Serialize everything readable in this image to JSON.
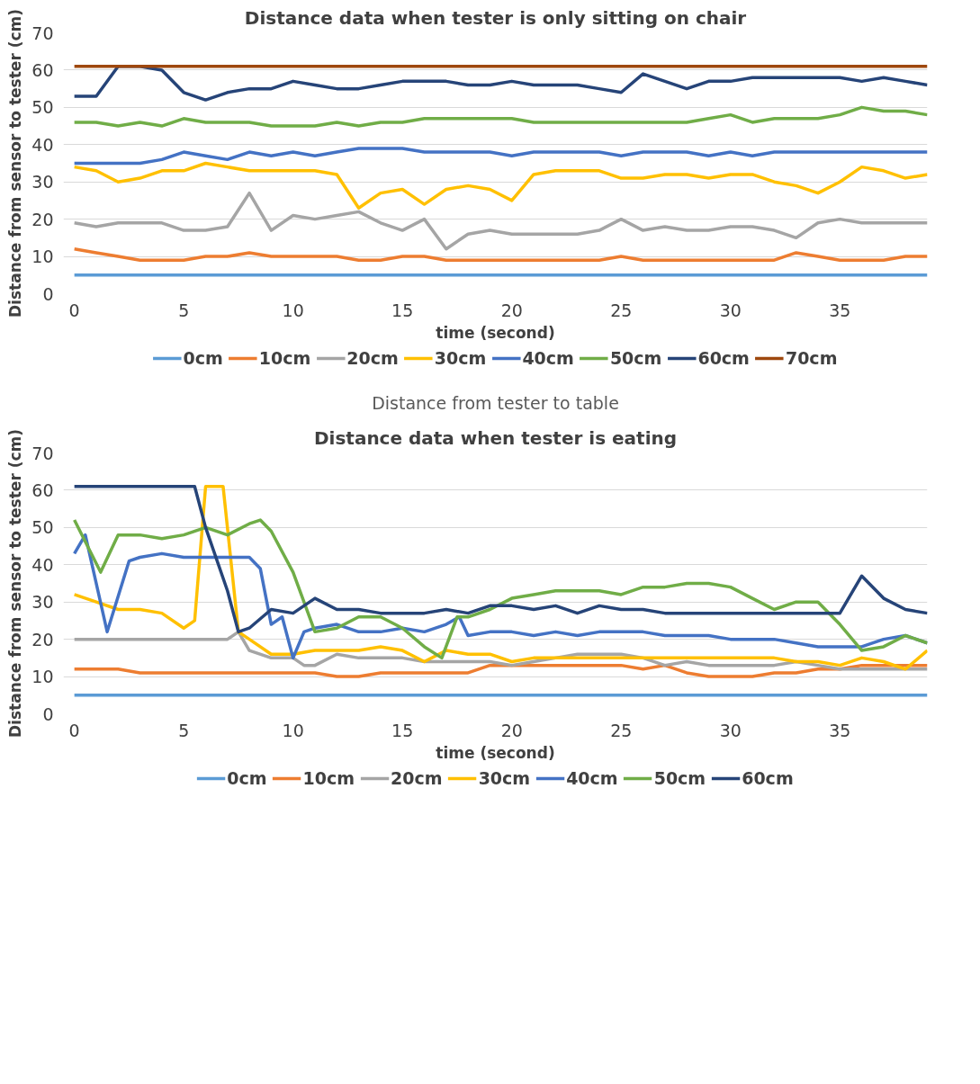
{
  "chart_data": [
    {
      "type": "line",
      "title": "Distance data when tester is only sitting on chair",
      "xlabel": "time (second)",
      "ylabel": "Distance from sensor to tester (cm)",
      "legend_title": "Distance from tester to table",
      "grid": "y",
      "legend": "bottom",
      "xlim": [
        -0.5,
        39
      ],
      "ylim": [
        0,
        70
      ],
      "xticks": [
        0,
        5,
        10,
        15,
        20,
        25,
        30,
        35
      ],
      "yticks": [
        0,
        10,
        20,
        30,
        40,
        50,
        60,
        70
      ],
      "x": [
        0,
        1,
        2,
        3,
        4,
        5,
        6,
        7,
        8,
        9,
        10,
        11,
        12,
        13,
        14,
        15,
        16,
        17,
        18,
        19,
        20,
        21,
        22,
        23,
        24,
        25,
        26,
        27,
        28,
        29,
        30,
        31,
        32,
        33,
        34,
        35,
        36,
        37,
        38,
        39
      ],
      "series": [
        {
          "name": "0cm",
          "color": "#5b9bd5",
          "values": [
            5,
            5,
            5,
            5,
            5,
            5,
            5,
            5,
            5,
            5,
            5,
            5,
            5,
            5,
            5,
            5,
            5,
            5,
            5,
            5,
            5,
            5,
            5,
            5,
            5,
            5,
            5,
            5,
            5,
            5,
            5,
            5,
            5,
            5,
            5,
            5,
            5,
            5,
            5,
            5
          ]
        },
        {
          "name": "10cm",
          "color": "#ed7d31",
          "values": [
            12,
            11,
            10,
            9,
            9,
            9,
            10,
            10,
            11,
            10,
            10,
            10,
            10,
            9,
            9,
            10,
            10,
            9,
            9,
            9,
            9,
            9,
            9,
            9,
            9,
            10,
            9,
            9,
            9,
            9,
            9,
            9,
            9,
            11,
            10,
            9,
            9,
            9,
            10,
            10
          ]
        },
        {
          "name": "20cm",
          "color": "#a5a5a5",
          "values": [
            19,
            18,
            19,
            19,
            19,
            17,
            17,
            18,
            27,
            17,
            21,
            20,
            21,
            22,
            19,
            17,
            20,
            12,
            16,
            17,
            16,
            16,
            16,
            16,
            17,
            20,
            17,
            18,
            17,
            17,
            18,
            18,
            17,
            15,
            19,
            20,
            19,
            19,
            19,
            19
          ]
        },
        {
          "name": "30cm",
          "color": "#ffc000",
          "values": [
            34,
            33,
            30,
            31,
            33,
            33,
            35,
            34,
            33,
            33,
            33,
            33,
            32,
            23,
            27,
            28,
            24,
            28,
            29,
            28,
            25,
            32,
            33,
            33,
            33,
            31,
            31,
            32,
            32,
            31,
            32,
            32,
            30,
            29,
            27,
            30,
            34,
            33,
            31,
            32
          ]
        },
        {
          "name": "40cm",
          "color": "#4472c4",
          "values": [
            35,
            35,
            35,
            35,
            36,
            38,
            37,
            36,
            38,
            37,
            38,
            37,
            38,
            39,
            39,
            39,
            38,
            38,
            38,
            38,
            37,
            38,
            38,
            38,
            38,
            37,
            38,
            38,
            38,
            37,
            38,
            37,
            38,
            38,
            38,
            38,
            38,
            38,
            38,
            38
          ]
        },
        {
          "name": "50cm",
          "color": "#70ad47",
          "values": [
            46,
            46,
            45,
            46,
            45,
            47,
            46,
            46,
            46,
            45,
            45,
            45,
            46,
            45,
            46,
            46,
            47,
            47,
            47,
            47,
            47,
            46,
            46,
            46,
            46,
            46,
            46,
            46,
            46,
            47,
            48,
            46,
            47,
            47,
            47,
            48,
            50,
            49,
            49,
            48
          ]
        },
        {
          "name": "60cm",
          "color": "#264478",
          "values": [
            53,
            53,
            61,
            61,
            60,
            54,
            52,
            54,
            55,
            55,
            57,
            56,
            55,
            55,
            56,
            57,
            57,
            57,
            56,
            56,
            57,
            56,
            56,
            56,
            55,
            54,
            59,
            57,
            55,
            57,
            57,
            58,
            58,
            58,
            58,
            58,
            57,
            58,
            57,
            56
          ]
        },
        {
          "name": "70cm",
          "color": "#9e480e",
          "values": [
            61,
            61,
            61,
            61,
            61,
            61,
            61,
            61,
            61,
            61,
            61,
            61,
            61,
            61,
            61,
            61,
            61,
            61,
            61,
            61,
            61,
            61,
            61,
            61,
            61,
            61,
            61,
            61,
            61,
            61,
            61,
            61,
            61,
            61,
            61,
            61,
            61,
            61,
            61,
            61
          ]
        }
      ]
    },
    {
      "type": "line",
      "title": "Distance data when tester is eating",
      "xlabel": "time (second)",
      "ylabel": "Distance from sensor to tester (cm)",
      "grid": "y",
      "legend": "bottom",
      "xlim": [
        -0.5,
        39
      ],
      "ylim": [
        0,
        70
      ],
      "xticks": [
        0,
        5,
        10,
        15,
        20,
        25,
        30,
        35
      ],
      "yticks": [
        0,
        10,
        20,
        30,
        40,
        50,
        60,
        70
      ],
      "x": [
        0,
        1,
        2,
        3,
        4,
        5,
        6,
        7,
        8,
        9,
        10,
        11,
        12,
        13,
        14,
        15,
        16,
        17,
        18,
        19,
        20,
        21,
        22,
        23,
        24,
        25,
        26,
        27,
        28,
        29,
        30,
        31,
        32,
        33,
        34,
        35,
        36,
        37,
        38,
        39
      ],
      "series": [
        {
          "name": "0cm",
          "color": "#5b9bd5",
          "values": [
            5,
            5,
            5,
            5,
            5,
            5,
            5,
            5,
            5,
            5,
            5,
            5,
            5,
            5,
            5,
            5,
            5,
            5,
            5,
            5,
            5,
            5,
            5,
            5,
            5,
            5,
            5,
            5,
            5,
            5,
            5,
            5,
            5,
            5,
            5,
            5,
            5,
            5,
            5,
            5
          ]
        },
        {
          "name": "10cm",
          "color": "#ed7d31",
          "values": [
            12,
            12,
            12,
            11,
            11,
            11,
            11,
            11,
            11,
            11,
            11,
            11,
            10,
            10,
            11,
            11,
            11,
            11,
            11,
            13,
            13,
            13,
            13,
            13,
            13,
            13,
            12,
            13,
            11,
            10,
            10,
            10,
            11,
            11,
            12,
            12,
            13,
            13,
            13,
            13
          ]
        },
        {
          "name": "20cm",
          "color": "#a5a5a5",
          "x": [
            0,
            1,
            2,
            3,
            4,
            5,
            6,
            7,
            7.5,
            8,
            9,
            10,
            10.5,
            11,
            12,
            13,
            14,
            15,
            16,
            17,
            18,
            19,
            20,
            21,
            22,
            23,
            24,
            25,
            26,
            27,
            28,
            29,
            30,
            31,
            32,
            33,
            34,
            35,
            36,
            37,
            38,
            39
          ],
          "values": [
            20,
            20,
            20,
            20,
            20,
            20,
            20,
            20,
            22,
            17,
            15,
            15,
            13,
            13,
            16,
            15,
            15,
            15,
            14,
            14,
            14,
            14,
            13,
            14,
            15,
            16,
            16,
            16,
            15,
            13,
            14,
            13,
            13,
            13,
            13,
            14,
            13,
            12,
            12,
            12,
            12,
            12
          ]
        },
        {
          "name": "30cm",
          "color": "#ffc000",
          "x": [
            0,
            1,
            2,
            3,
            4,
            5,
            5.5,
            6,
            6.8,
            7.5,
            8,
            9,
            10,
            11,
            12,
            13,
            14,
            15,
            16,
            17,
            18,
            19,
            20,
            21,
            22,
            23,
            24,
            25,
            26,
            27,
            28,
            29,
            30,
            31,
            32,
            33,
            34,
            35,
            36,
            37,
            38,
            39
          ],
          "values": [
            32,
            30,
            28,
            28,
            27,
            23,
            25,
            61,
            61,
            22,
            20,
            16,
            16,
            17,
            17,
            17,
            18,
            17,
            14,
            17,
            16,
            16,
            14,
            15,
            15,
            15,
            15,
            15,
            15,
            15,
            15,
            15,
            15,
            15,
            15,
            14,
            14,
            13,
            15,
            14,
            12,
            17
          ]
        },
        {
          "name": "40cm",
          "color": "#4472c4",
          "x": [
            0,
            0.5,
            1.5,
            2.5,
            3,
            4,
            5,
            6,
            7,
            8,
            8.5,
            9,
            9.5,
            10,
            10.5,
            11,
            12,
            13,
            14,
            15,
            16,
            17,
            17.6,
            18,
            19,
            20,
            21,
            22,
            23,
            24,
            25,
            26,
            27,
            28,
            29,
            30,
            31,
            32,
            33,
            34,
            35,
            36,
            37,
            38,
            39
          ],
          "values": [
            43,
            48,
            22,
            41,
            42,
            43,
            42,
            42,
            42,
            42,
            39,
            24,
            26,
            15,
            22,
            23,
            24,
            22,
            22,
            23,
            22,
            24,
            26,
            21,
            22,
            22,
            21,
            22,
            21,
            22,
            22,
            22,
            21,
            21,
            21,
            20,
            20,
            20,
            19,
            18,
            18,
            18,
            20,
            21,
            19
          ]
        },
        {
          "name": "50cm",
          "color": "#70ad47",
          "x": [
            0,
            1.2,
            2,
            3,
            4,
            5,
            6,
            7,
            8,
            8.5,
            9,
            10,
            11,
            12,
            13,
            14,
            15,
            16,
            16.8,
            17.5,
            18,
            19,
            20,
            21,
            22,
            23,
            24,
            25,
            26,
            27,
            28,
            29,
            30,
            31,
            32,
            33,
            34,
            35,
            36,
            37,
            38,
            39
          ],
          "values": [
            52,
            38,
            48,
            48,
            47,
            48,
            50,
            48,
            51,
            52,
            49,
            38,
            22,
            23,
            26,
            26,
            23,
            18,
            15,
            26,
            26,
            28,
            31,
            32,
            33,
            33,
            33,
            32,
            34,
            34,
            35,
            35,
            34,
            31,
            28,
            30,
            30,
            24,
            17,
            18,
            21,
            19
          ]
        },
        {
          "name": "60cm",
          "color": "#264478",
          "x": [
            0,
            5.5,
            6,
            7,
            7.5,
            8,
            9,
            10,
            11,
            12,
            13,
            14,
            15,
            16,
            17,
            18,
            19,
            20,
            21,
            22,
            23,
            24,
            25,
            26,
            27,
            28,
            29,
            30,
            31,
            32,
            33,
            34,
            35,
            36,
            37,
            38,
            39
          ],
          "values": [
            61,
            61,
            50,
            33,
            22,
            23,
            28,
            27,
            31,
            28,
            28,
            27,
            27,
            27,
            28,
            27,
            29,
            29,
            28,
            29,
            27,
            29,
            28,
            28,
            27,
            27,
            27,
            27,
            27,
            27,
            27,
            27,
            27,
            37,
            31,
            28,
            27
          ]
        }
      ]
    }
  ]
}
